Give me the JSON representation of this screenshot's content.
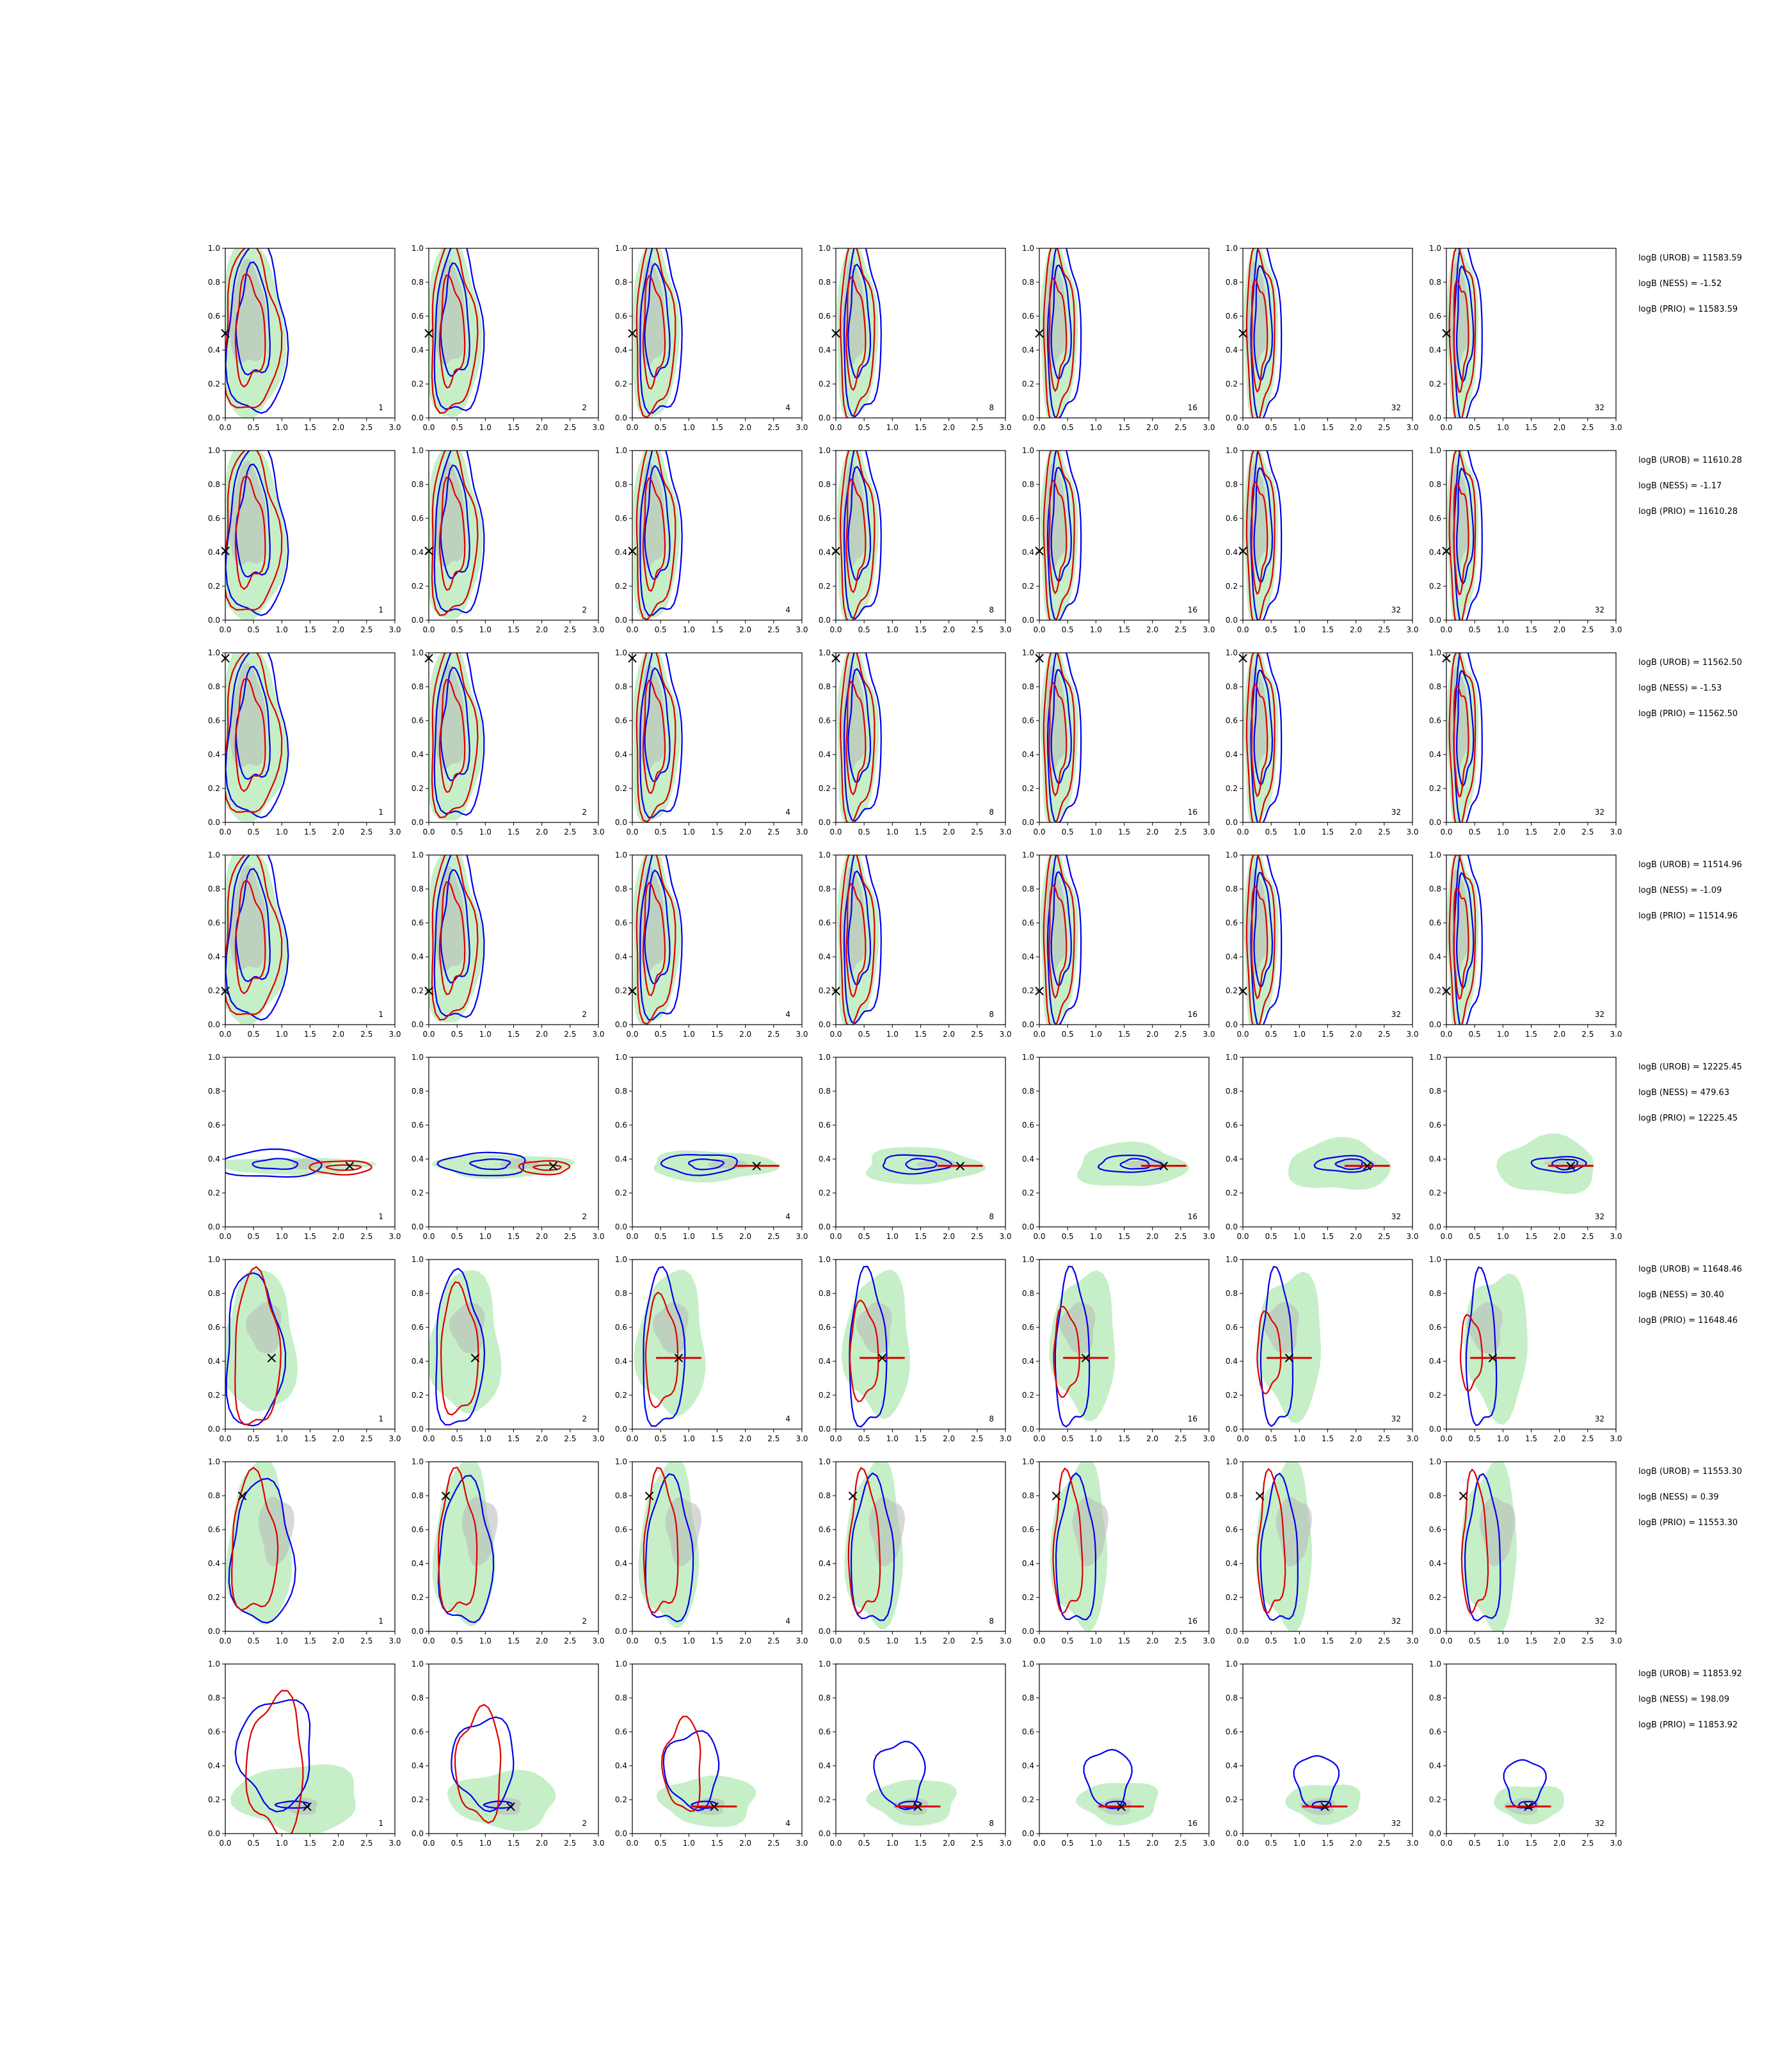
{
  "colors": {
    "green": "#98e29a",
    "grey": "#b8b8b8",
    "blue": "#0000ee",
    "red": "#dd0000",
    "axis": "#000000"
  },
  "chart_data": {
    "type": "contour-grid",
    "rows": 8,
    "cols": 7,
    "xlim": [
      0.0,
      3.0
    ],
    "ylim": [
      0.0,
      1.0
    ],
    "x_ticks": [
      "0.0",
      "0.5",
      "1.0",
      "1.5",
      "2.0",
      "2.5",
      "3.0"
    ],
    "y_ticks": [
      "0.0",
      "0.2",
      "0.4",
      "0.6",
      "0.8",
      "1.0"
    ],
    "panel_labels": [
      "1",
      "2",
      "4",
      "8",
      "16",
      "32",
      "32"
    ],
    "truth_markers": [
      {
        "x": 0.0,
        "y": 0.5
      },
      {
        "x": 0.0,
        "y": 0.41
      },
      {
        "x": 0.0,
        "y": 0.97
      },
      {
        "x": 0.0,
        "y": 0.2
      },
      {
        "x": 2.2,
        "y": 0.36
      },
      {
        "x": 0.82,
        "y": 0.42
      },
      {
        "x": 0.3,
        "y": 0.8
      },
      {
        "x": 1.45,
        "y": 0.16
      }
    ],
    "marker_symbol": "×",
    "row_stats": [
      [
        "logB (UROB) = 11583.59",
        "logB (NESS) = -1.52",
        "logB (PRIO) = 11583.59"
      ],
      [
        "logB (UROB) = 11610.28",
        "logB (NESS) = -1.17",
        "logB (PRIO) = 11610.28"
      ],
      [
        "logB (UROB) = 11562.50",
        "logB (NESS) = -1.53",
        "logB (PRIO) = 11562.50"
      ],
      [
        "logB (UROB) = 11514.96",
        "logB (NESS) = -1.09",
        "logB (PRIO) = 11514.96"
      ],
      [
        "logB (UROB) = 12225.45",
        "logB (NESS) = 479.63",
        "logB (PRIO) = 12225.45"
      ],
      [
        "logB (UROB) = 11648.46",
        "logB (NESS) = 30.40",
        "logB (PRIO) = 11648.46"
      ],
      [
        "logB (UROB) = 11553.30",
        "logB (NESS) = 0.39",
        "logB (PRIO) = 11553.30"
      ],
      [
        "logB (UROB) = 11853.92",
        "logB (NESS) = 198.09",
        "logB (PRIO) = 11853.92"
      ]
    ]
  }
}
